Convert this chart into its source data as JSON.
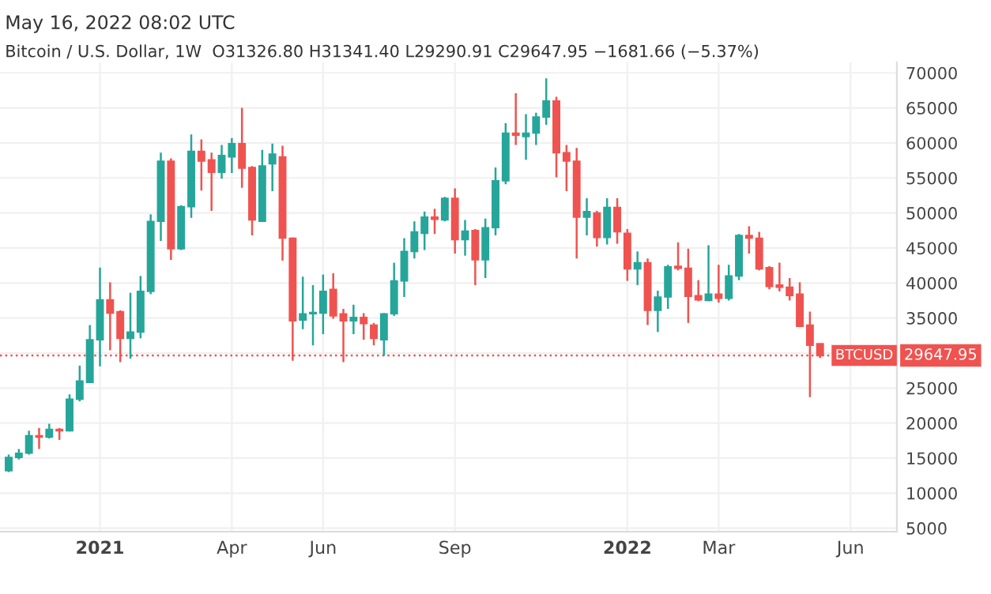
{
  "chart_data": {
    "type": "candlestick",
    "title": "May 16, 2022 08:02 UTC",
    "subtitle": "Bitcoin / U.S. Dollar, 1W  O31326.80 H31341.40 L29290.91 C29647.95 −1681.66 (−5.37%)",
    "x": [
      "2020-11-02",
      "2020-11-09",
      "2020-11-16",
      "2020-11-23",
      "2020-11-30",
      "2020-12-07",
      "2020-12-14",
      "2020-12-21",
      "2020-12-28",
      "2021-01-04",
      "2021-01-11",
      "2021-01-18",
      "2021-01-25",
      "2021-02-01",
      "2021-02-08",
      "2021-02-15",
      "2021-02-22",
      "2021-03-01",
      "2021-03-08",
      "2021-03-15",
      "2021-03-22",
      "2021-03-29",
      "2021-04-05",
      "2021-04-12",
      "2021-04-19",
      "2021-04-26",
      "2021-05-03",
      "2021-05-10",
      "2021-05-17",
      "2021-05-24",
      "2021-05-31",
      "2021-06-07",
      "2021-06-14",
      "2021-06-21",
      "2021-06-28",
      "2021-07-05",
      "2021-07-12",
      "2021-07-19",
      "2021-07-26",
      "2021-08-02",
      "2021-08-09",
      "2021-08-16",
      "2021-08-23",
      "2021-08-30",
      "2021-09-06",
      "2021-09-13",
      "2021-09-20",
      "2021-09-27",
      "2021-10-04",
      "2021-10-11",
      "2021-10-18",
      "2021-10-25",
      "2021-11-01",
      "2021-11-08",
      "2021-11-15",
      "2021-11-22",
      "2021-11-29",
      "2021-12-06",
      "2021-12-13",
      "2021-12-20",
      "2021-12-27",
      "2022-01-03",
      "2022-01-10",
      "2022-01-17",
      "2022-01-24",
      "2022-01-31",
      "2022-02-07",
      "2022-02-14",
      "2022-02-21",
      "2022-02-28",
      "2022-03-07",
      "2022-03-14",
      "2022-03-21",
      "2022-03-28",
      "2022-04-04",
      "2022-04-11",
      "2022-04-18",
      "2022-04-25",
      "2022-05-02",
      "2022-05-09",
      "2022-05-16"
    ],
    "ohlc": [
      [
        13200,
        15500,
        13000,
        15100
      ],
      [
        15100,
        16300,
        14800,
        15700
      ],
      [
        15700,
        18900,
        15500,
        18200
      ],
      [
        18200,
        19300,
        16300,
        18000
      ],
      [
        18000,
        19900,
        17800,
        19100
      ],
      [
        19100,
        19300,
        17600,
        18900
      ],
      [
        18900,
        24100,
        18800,
        23400
      ],
      [
        23400,
        28200,
        23100,
        26000
      ],
      [
        25800,
        34000,
        25700,
        31900
      ],
      [
        31900,
        42200,
        28100,
        37600
      ],
      [
        37600,
        40100,
        30400,
        35700
      ],
      [
        35900,
        36100,
        28700,
        32100
      ],
      [
        32100,
        38600,
        29200,
        33000
      ],
      [
        33000,
        41000,
        32100,
        38800
      ],
      [
        38800,
        49800,
        38400,
        48800
      ],
      [
        48800,
        58600,
        46000,
        57400
      ],
      [
        57400,
        57800,
        43300,
        44900
      ],
      [
        44900,
        51100,
        44700,
        50900
      ],
      [
        50900,
        61200,
        49300,
        58800
      ],
      [
        58800,
        60500,
        53200,
        57400
      ],
      [
        57600,
        58600,
        50300,
        55800
      ],
      [
        55800,
        59700,
        54900,
        58200
      ],
      [
        58000,
        60700,
        55700,
        59900
      ],
      [
        59900,
        65000,
        53600,
        56400
      ],
      [
        56500,
        56700,
        46800,
        49000
      ],
      [
        48800,
        59000,
        48700,
        56700
      ],
      [
        57000,
        59900,
        53100,
        58400
      ],
      [
        58000,
        59600,
        43200,
        46400
      ],
      [
        46400,
        46500,
        28900,
        34600
      ],
      [
        34700,
        40900,
        33400,
        35600
      ],
      [
        35600,
        39700,
        31100,
        35800
      ],
      [
        35700,
        41200,
        32700,
        38800
      ],
      [
        39100,
        41400,
        34900,
        35300
      ],
      [
        35600,
        36300,
        28700,
        34600
      ],
      [
        34600,
        36900,
        32700,
        35100
      ],
      [
        35100,
        35700,
        31900,
        34200
      ],
      [
        34000,
        34300,
        31100,
        32100
      ],
      [
        31900,
        35700,
        29600,
        35600
      ],
      [
        35600,
        42900,
        35300,
        40300
      ],
      [
        40300,
        46400,
        38000,
        44500
      ],
      [
        44500,
        48800,
        43500,
        47300
      ],
      [
        47100,
        50200,
        44700,
        49400
      ],
      [
        49400,
        50600,
        47000,
        49100
      ],
      [
        49000,
        52300,
        48800,
        52100
      ],
      [
        52100,
        53500,
        44200,
        46200
      ],
      [
        46200,
        49000,
        43900,
        47400
      ],
      [
        47500,
        47700,
        39700,
        43300
      ],
      [
        43300,
        49200,
        40700,
        47900
      ],
      [
        47900,
        56500,
        46800,
        54600
      ],
      [
        54600,
        62800,
        54100,
        61400
      ],
      [
        61400,
        67100,
        59700,
        61100
      ],
      [
        60900,
        64100,
        57600,
        61400
      ],
      [
        61400,
        64300,
        59700,
        63700
      ],
      [
        63700,
        69200,
        62600,
        66000
      ],
      [
        66000,
        66600,
        55100,
        58600
      ],
      [
        58600,
        59700,
        53100,
        57400
      ],
      [
        57400,
        59300,
        43500,
        49400
      ],
      [
        49400,
        52100,
        46800,
        50200
      ],
      [
        50000,
        50300,
        45200,
        46500
      ],
      [
        46500,
        52100,
        45500,
        50800
      ],
      [
        50800,
        52100,
        45600,
        47300
      ],
      [
        47100,
        47700,
        40300,
        42000
      ],
      [
        42000,
        44500,
        39700,
        42900
      ],
      [
        42900,
        43500,
        34000,
        36100
      ],
      [
        36100,
        38900,
        33000,
        38000
      ],
      [
        38000,
        42600,
        36300,
        42300
      ],
      [
        42400,
        45800,
        41800,
        42100
      ],
      [
        42100,
        44900,
        34300,
        38100
      ],
      [
        38200,
        40400,
        37400,
        37600
      ],
      [
        37500,
        45400,
        37400,
        38400
      ],
      [
        38400,
        42600,
        37200,
        37800
      ],
      [
        37800,
        42600,
        37500,
        41000
      ],
      [
        41000,
        47000,
        40400,
        46800
      ],
      [
        46800,
        48100,
        44200,
        46400
      ],
      [
        46400,
        47300,
        41800,
        42000
      ],
      [
        42200,
        42400,
        39100,
        39500
      ],
      [
        39700,
        42900,
        38800,
        39400
      ],
      [
        39400,
        40700,
        37500,
        38200
      ],
      [
        38400,
        40100,
        33700,
        33800
      ],
      [
        34000,
        35900,
        23700,
        31100
      ],
      [
        31326.8,
        31341.4,
        29290.91,
        29647.95
      ]
    ],
    "colors": [
      "#26a69a",
      "#26a69a",
      "#26a69a",
      "#ef5350",
      "#26a69a",
      "#ef5350",
      "#26a69a",
      "#26a69a",
      "#26a69a",
      "#26a69a",
      "#ef5350",
      "#ef5350",
      "#26a69a",
      "#26a69a",
      "#26a69a",
      "#26a69a",
      "#ef5350",
      "#26a69a",
      "#26a69a",
      "#ef5350",
      "#ef5350",
      "#26a69a",
      "#26a69a",
      "#ef5350",
      "#ef5350",
      "#26a69a",
      "#26a69a",
      "#ef5350",
      "#ef5350",
      "#26a69a",
      "#26a69a",
      "#26a69a",
      "#ef5350",
      "#ef5350",
      "#26a69a",
      "#ef5350",
      "#ef5350",
      "#26a69a",
      "#26a69a",
      "#26a69a",
      "#26a69a",
      "#26a69a",
      "#ef5350",
      "#26a69a",
      "#ef5350",
      "#26a69a",
      "#ef5350",
      "#26a69a",
      "#26a69a",
      "#26a69a",
      "#ef5350",
      "#26a69a",
      "#26a69a",
      "#26a69a",
      "#ef5350",
      "#ef5350",
      "#ef5350",
      "#26a69a",
      "#ef5350",
      "#26a69a",
      "#ef5350",
      "#ef5350",
      "#26a69a",
      "#ef5350",
      "#26a69a",
      "#26a69a",
      "#ef5350",
      "#ef5350",
      "#ef5350",
      "#26a69a",
      "#ef5350",
      "#26a69a",
      "#26a69a",
      "#ef5350",
      "#ef5350",
      "#ef5350",
      "#ef5350",
      "#ef5350",
      "#ef5350",
      "#ef5350",
      "#ef5350"
    ],
    "xlim": [
      "2020-10-27",
      "2022-07-08"
    ],
    "xticks": [
      {
        "value": "2021-01-04",
        "label": "2021"
      },
      {
        "value": "2021-04-05",
        "label": "Apr"
      },
      {
        "value": "2021-06-07",
        "label": "Jun"
      },
      {
        "value": "2021-09-06",
        "label": "Sep"
      },
      {
        "value": "2022-01-03",
        "label": "2022"
      },
      {
        "value": "2022-03-07",
        "label": "Mar"
      },
      {
        "value": "2022-06-06",
        "label": "Jun"
      }
    ],
    "ylim": [
      4500,
      71500
    ],
    "yticks": [
      5000,
      10000,
      15000,
      20000,
      25000,
      {
        "value": 30000,
        "label": null
      },
      35000,
      40000,
      45000,
      50000,
      55000,
      60000,
      65000,
      70000
    ],
    "ref_lines": [
      {
        "axis": "y",
        "value": 29647.95,
        "label": "BTCUSD",
        "color": "#ef5350",
        "line_style": "dotted"
      }
    ],
    "annotations": [
      "29647.95"
    ],
    "grid": true
  }
}
